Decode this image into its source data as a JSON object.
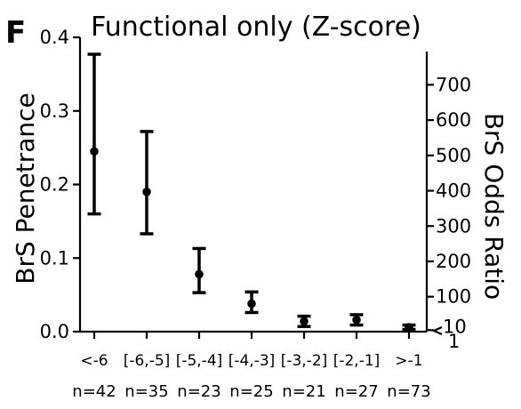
{
  "panel_label": "F",
  "chart_data": {
    "type": "scatter",
    "title": "Functional only (Z-score)",
    "ylabel": "BrS Penetrance",
    "y2label": "BrS Odds Ratio",
    "categories": [
      "<-6",
      "[-6,-5]",
      "[-5,-4]",
      "[-4,-3]",
      "[-3,-2]",
      "[-2,-1]",
      ">-1"
    ],
    "n_labels": [
      "n=42",
      "n=35",
      "n=23",
      "n=25",
      "n=21",
      "n=27",
      "n=73"
    ],
    "values": [
      0.245,
      0.19,
      0.078,
      0.038,
      0.014,
      0.016,
      0.006
    ],
    "lower": [
      0.16,
      0.133,
      0.053,
      0.026,
      0.007,
      0.009,
      0.003
    ],
    "upper": [
      0.377,
      0.272,
      0.113,
      0.054,
      0.021,
      0.023,
      0.009
    ],
    "ylim": [
      0,
      0.4
    ],
    "yticks": [
      {
        "value": 0,
        "label": "0.0"
      },
      {
        "value": 0.1,
        "label": "0.1"
      },
      {
        "value": 0.2,
        "label": "0.2"
      },
      {
        "value": 0.3,
        "label": "0.3"
      },
      {
        "value": 0.4,
        "label": "0.4"
      }
    ],
    "y2ticks": [
      {
        "value": 1,
        "label": "1",
        "at": 0
      },
      {
        "value": 10,
        "label": "10",
        "at": 0.002
      },
      {
        "value": 100,
        "label": "100",
        "at": 0.0475
      },
      {
        "value": 200,
        "label": "200",
        "at": 0.0955
      },
      {
        "value": 300,
        "label": "300",
        "at": 0.1435
      },
      {
        "value": 400,
        "label": "400",
        "at": 0.1915
      },
      {
        "value": 500,
        "label": "500",
        "at": 0.2395
      },
      {
        "value": 600,
        "label": "600",
        "at": 0.2875
      },
      {
        "value": 700,
        "label": "700",
        "at": 0.3355
      }
    ],
    "grid": false,
    "legend": "none"
  }
}
